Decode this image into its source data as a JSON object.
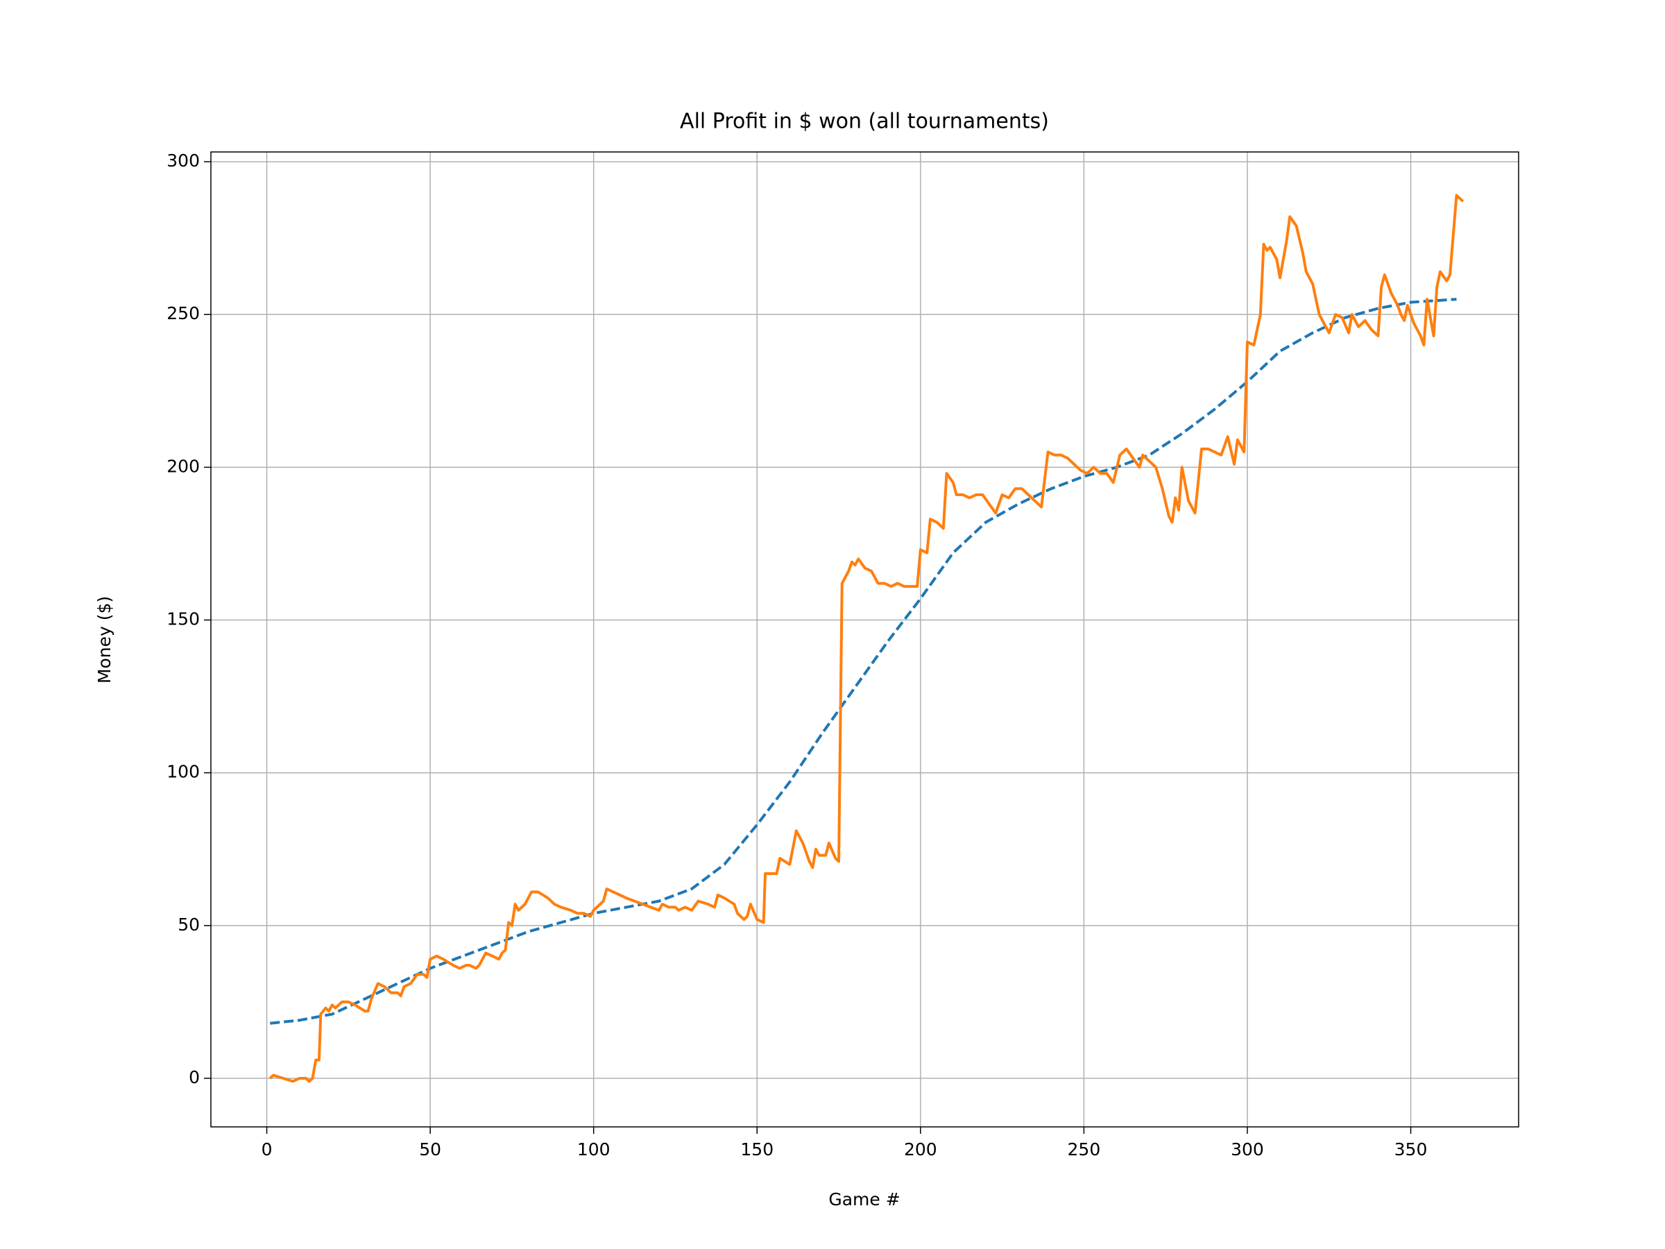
{
  "chart_data": {
    "type": "line",
    "title": "All Profit in $ won (all tournaments)",
    "x_label": "Game #",
    "y_label": "Money ($)",
    "xlim": [
      -17.1,
      383
    ],
    "ylim": [
      -15.9,
      303.2
    ],
    "xticks": [
      0,
      50,
      100,
      150,
      200,
      250,
      300,
      350
    ],
    "yticks": [
      0,
      50,
      100,
      150,
      200,
      250,
      300
    ],
    "grid": true,
    "series": [
      {
        "color": "#1f77b4",
        "dashed": true,
        "x": [
          1,
          10,
          20,
          30,
          40,
          50,
          60,
          70,
          80,
          90,
          100,
          110,
          120,
          130,
          140,
          150,
          160,
          170,
          180,
          190,
          200,
          210,
          220,
          230,
          240,
          250,
          260,
          270,
          280,
          290,
          300,
          310,
          320,
          330,
          340,
          350,
          364
        ],
        "values": [
          18,
          19,
          21,
          26,
          31,
          36,
          40,
          44,
          48,
          51,
          54,
          56,
          58,
          62,
          70,
          83,
          97,
          113,
          128,
          143,
          157,
          172,
          182,
          188,
          193,
          197,
          200,
          204,
          211,
          219,
          228,
          238,
          244,
          249,
          252,
          254,
          255
        ]
      },
      {
        "color": "#ff7f0e",
        "dashed": false,
        "x": [
          1,
          2,
          5,
          8,
          10,
          12,
          13,
          14,
          15,
          16,
          16.5,
          18,
          19,
          20,
          21,
          23,
          25,
          27,
          30,
          31,
          32,
          34,
          36,
          38,
          40,
          41,
          42,
          44,
          46,
          48,
          49,
          50,
          52,
          54,
          57,
          59,
          61,
          62,
          64,
          65,
          67,
          69,
          71,
          72,
          73,
          74,
          75,
          76,
          77,
          79,
          81,
          83,
          86,
          88,
          90,
          93,
          95,
          97,
          99,
          100,
          102,
          103,
          104,
          106,
          110,
          115,
          120,
          121,
          123,
          125,
          126,
          128,
          130,
          132,
          135,
          137,
          138,
          140,
          143,
          144,
          146,
          147,
          148,
          150,
          152,
          152.5,
          154,
          156,
          157,
          160,
          162,
          164,
          166,
          167,
          168,
          169,
          171,
          172,
          174,
          175,
          176,
          178,
          179,
          180,
          181,
          183,
          185,
          187,
          189,
          191,
          193,
          195,
          197,
          199,
          200,
          202,
          203,
          205,
          207,
          208,
          210,
          211,
          213,
          215,
          217,
          219,
          221,
          223,
          225,
          227,
          229,
          231,
          233,
          235,
          237,
          239,
          241,
          243,
          245,
          247,
          249,
          251,
          253,
          255,
          257,
          259,
          261,
          263,
          265,
          267,
          268,
          270,
          272,
          274,
          276,
          277,
          278,
          279,
          280,
          282,
          284,
          286,
          288,
          290,
          292,
          294,
          296,
          297,
          299,
          300,
          302,
          304,
          305,
          306,
          307,
          309,
          310,
          312,
          313,
          315,
          317,
          318,
          320,
          322,
          324,
          325,
          327,
          329,
          331,
          332,
          334,
          336,
          338,
          340,
          341,
          342,
          344,
          346,
          347,
          348,
          349,
          351,
          353,
          354,
          355,
          357,
          358,
          359,
          361,
          362,
          364,
          366
        ],
        "values": [
          0,
          1,
          0,
          -1,
          0,
          0,
          -1,
          0,
          6,
          6,
          21,
          23,
          22,
          24,
          23,
          25,
          25,
          24,
          22,
          22,
          26,
          31,
          30,
          28,
          28,
          27,
          30,
          31,
          34,
          34,
          33,
          39,
          40,
          39,
          37,
          36,
          37,
          37,
          36,
          37,
          41,
          40,
          39,
          41,
          42,
          51,
          50,
          57,
          55,
          57,
          61,
          61,
          59,
          57,
          56,
          55,
          54,
          54,
          53,
          55,
          57,
          58,
          62,
          61,
          59,
          57,
          55,
          57,
          56,
          56,
          55,
          56,
          55,
          58,
          57,
          56,
          60,
          59,
          57,
          54,
          52,
          53,
          57,
          52,
          51,
          67,
          67,
          67,
          72,
          70,
          81,
          77,
          71,
          69,
          75,
          73,
          73,
          77,
          72,
          71,
          162,
          166,
          169,
          168,
          170,
          167,
          166,
          162,
          162,
          161,
          162,
          161,
          161,
          161,
          173,
          172,
          183,
          182,
          180,
          198,
          195,
          191,
          191,
          190,
          191,
          191,
          188,
          185,
          191,
          190,
          193,
          193,
          191,
          189,
          187,
          205,
          204,
          204,
          203,
          201,
          199,
          198,
          200,
          198,
          198,
          195,
          204,
          206,
          203,
          200,
          204,
          202,
          200,
          193,
          184,
          182,
          190,
          186,
          200,
          189,
          185,
          206,
          206,
          205,
          204,
          210,
          201,
          209,
          205,
          241,
          240,
          250,
          273,
          271,
          272,
          268,
          262,
          274,
          282,
          279,
          270,
          264,
          260,
          250,
          246,
          244,
          250,
          249,
          244,
          250,
          246,
          248,
          245,
          243,
          259,
          263,
          257,
          253,
          250,
          248,
          253,
          247,
          243,
          240,
          255,
          243,
          259,
          264,
          261,
          263,
          289,
          287
        ]
      }
    ]
  }
}
